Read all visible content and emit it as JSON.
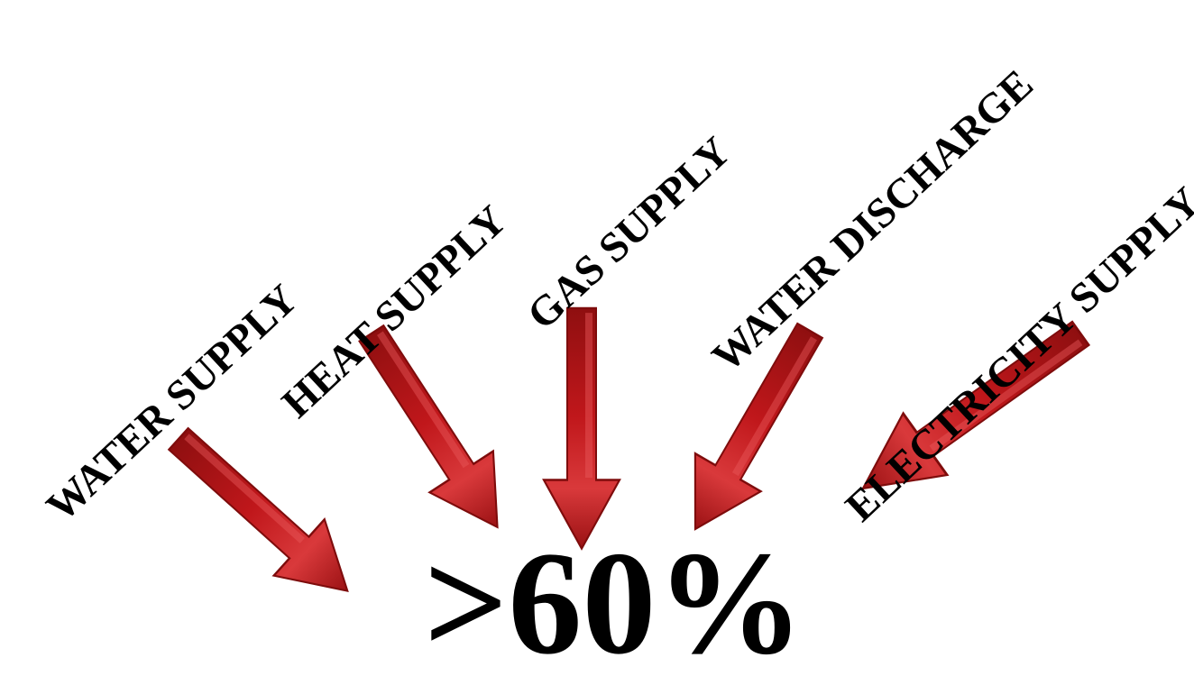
{
  "labels": {
    "water_supply": "WATER SUPPLY",
    "heat_supply": "HEAT SUPPLY",
    "gas_supply": "GAS SUPPLY",
    "water_discharge": "WATER DISCHARGE",
    "electricity_supply": "ELECTRICITY SUPPLY"
  },
  "result": ">60%",
  "colors": {
    "arrow_fill": "#c0171b",
    "arrow_dark": "#7e0c0c",
    "arrow_light": "#e8595a",
    "text": "#000000",
    "background": "#ffffff"
  }
}
